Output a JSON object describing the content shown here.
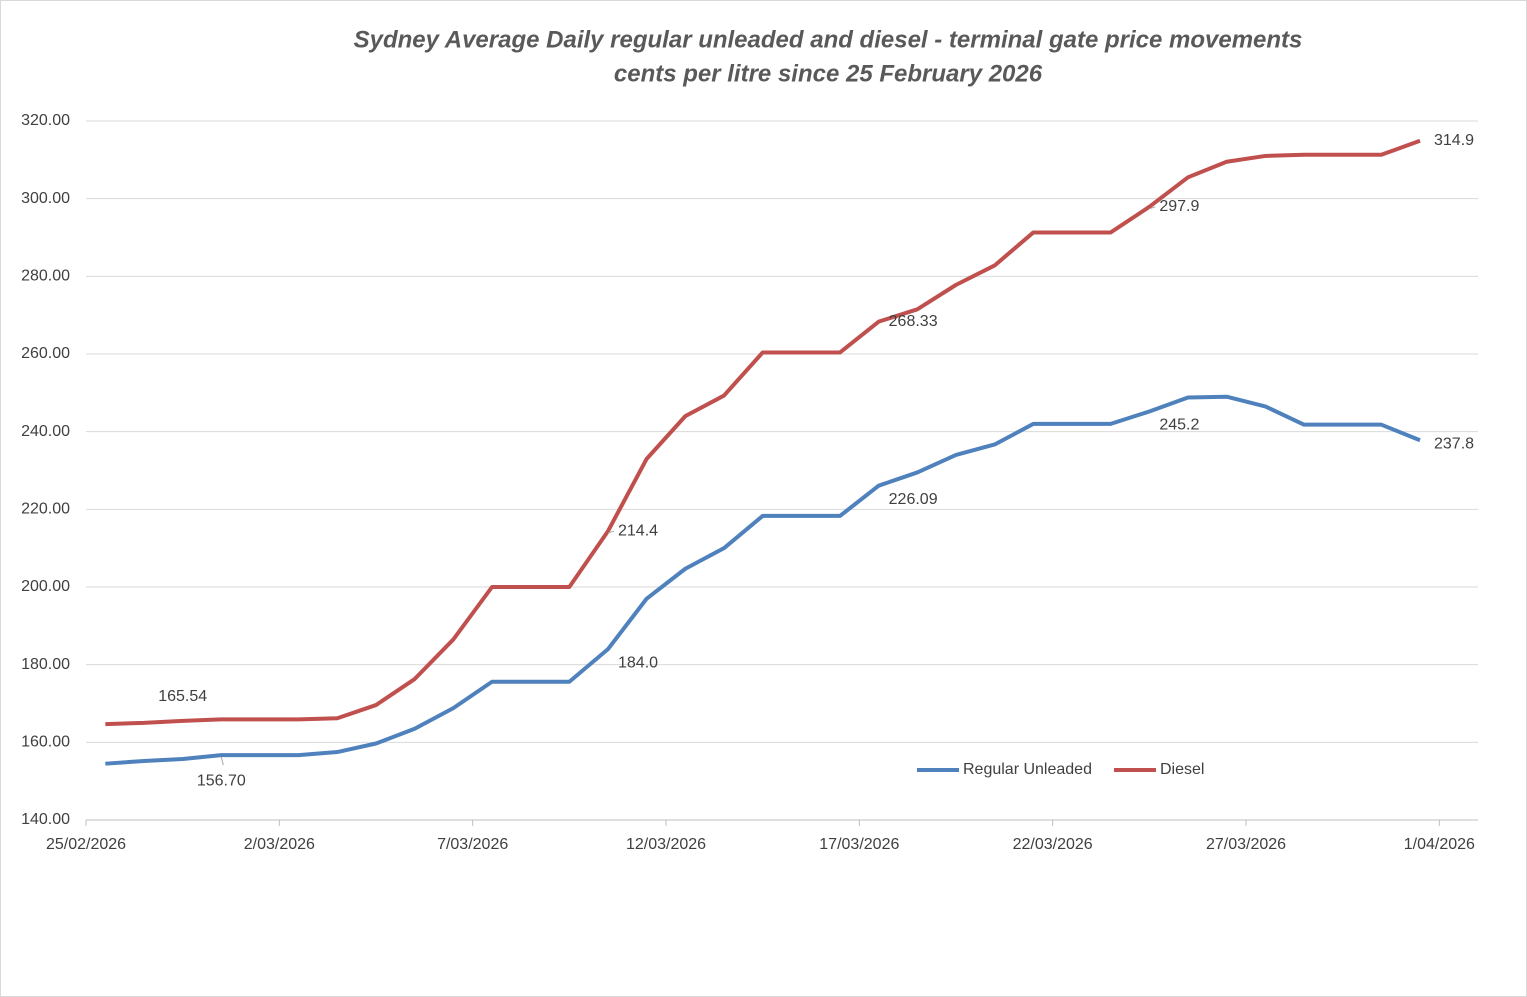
{
  "chart_data": {
    "type": "line",
    "title": "Sydney Average Daily regular unleaded and diesel - terminal gate price movements",
    "subtitle": "cents per litre since 25 February 2026",
    "x": [
      "25/02/2026",
      "26/02/2026",
      "27/02/2026",
      "28/02/2026",
      "1/03/2026",
      "2/03/2026",
      "3/03/2026",
      "4/03/2026",
      "5/03/2026",
      "6/03/2026",
      "7/03/2026",
      "8/03/2026",
      "9/03/2026",
      "10/03/2026",
      "11/03/2026",
      "12/03/2026",
      "13/03/2026",
      "14/03/2026",
      "15/03/2026",
      "16/03/2026",
      "17/03/2026",
      "18/03/2026",
      "19/03/2026",
      "20/03/2026",
      "21/03/2026",
      "22/03/2026",
      "23/03/2026",
      "24/03/2026",
      "25/03/2026",
      "26/03/2026",
      "27/03/2026",
      "28/03/2026",
      "29/03/2026",
      "30/03/2026",
      "31/03/2026"
    ],
    "xticks": [
      "25/02/2026",
      "2/03/2026",
      "7/03/2026",
      "12/03/2026",
      "17/03/2026",
      "22/03/2026",
      "27/03/2026",
      "1/04/2026"
    ],
    "ylim": [
      140,
      320
    ],
    "yticks": [
      {
        "value": 140,
        "label": "140.00"
      },
      {
        "value": 160,
        "label": "160.00"
      },
      {
        "value": 180,
        "label": "180.00"
      },
      {
        "value": 200,
        "label": "200.00"
      },
      {
        "value": 220,
        "label": "220.00"
      },
      {
        "value": 240,
        "label": "240.00"
      },
      {
        "value": 260,
        "label": "260.00"
      },
      {
        "value": 280,
        "label": "280.00"
      },
      {
        "value": 300,
        "label": "300.00"
      },
      {
        "value": 320,
        "label": "320.00"
      }
    ],
    "grid": true,
    "legend": "bottom",
    "series": [
      {
        "name": "Regular Unleaded",
        "color": "#4f81bd",
        "values": [
          154.5,
          155.2,
          155.7,
          156.7,
          156.7,
          156.7,
          157.5,
          159.7,
          163.5,
          168.8,
          175.6,
          175.6,
          175.6,
          184.0,
          197,
          204.7,
          210,
          218.3,
          218.3,
          218.3,
          226.09,
          229.5,
          234,
          236.7,
          242,
          242,
          242,
          245.2,
          248.8,
          249,
          246.5,
          241.8,
          241.8,
          241.8,
          237.8
        ],
        "value_labels": [
          null,
          null,
          null,
          "156.70",
          null,
          null,
          null,
          null,
          null,
          null,
          null,
          null,
          null,
          "184.0",
          null,
          null,
          null,
          null,
          null,
          null,
          "226.09",
          null,
          null,
          null,
          null,
          null,
          null,
          "245.2",
          null,
          null,
          null,
          null,
          null,
          null,
          "237.8"
        ]
      },
      {
        "name": "Diesel",
        "color": "#c0504d",
        "values": [
          164.7,
          165,
          165.54,
          165.9,
          165.9,
          165.9,
          166.2,
          169.6,
          176.3,
          186.5,
          200,
          200,
          200,
          214.4,
          233,
          244,
          249.3,
          260.4,
          260.4,
          260.4,
          268.33,
          271.5,
          277.8,
          282.8,
          291.3,
          291.3,
          291.3,
          297.9,
          305.5,
          309.5,
          311,
          311.3,
          311.3,
          311.3,
          314.9
        ],
        "value_labels": [
          null,
          null,
          "165.54",
          null,
          null,
          null,
          null,
          null,
          null,
          null,
          null,
          null,
          null,
          "214.4",
          null,
          null,
          null,
          null,
          null,
          null,
          "268.33",
          null,
          null,
          null,
          null,
          null,
          null,
          "297.9",
          null,
          null,
          null,
          null,
          null,
          null,
          "314.9"
        ]
      }
    ]
  }
}
